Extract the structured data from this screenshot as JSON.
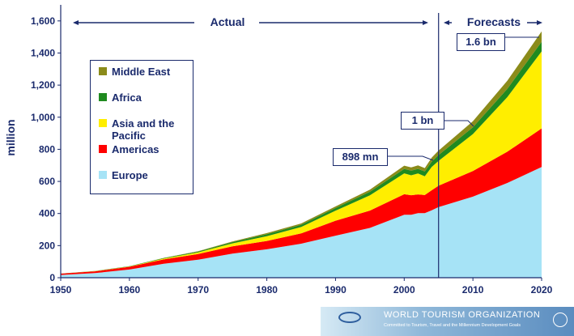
{
  "chart_data": {
    "type": "area",
    "stacked": true,
    "ylabel": "million",
    "ylim": [
      0,
      1700
    ],
    "xlim": [
      1950,
      2020
    ],
    "x_ticks": [
      "1950",
      "1960",
      "1970",
      "1980",
      "1990",
      "2000",
      "2010",
      "2020"
    ],
    "y_ticks": [
      "0",
      "200",
      "400",
      "600",
      "800",
      "1,000",
      "1,200",
      "1,400",
      "1,600"
    ],
    "x": [
      1950,
      1955,
      1960,
      1965,
      1970,
      1975,
      1980,
      1985,
      1990,
      1995,
      2000,
      2001,
      2002,
      2003,
      2004,
      2005,
      2010,
      2015,
      2020
    ],
    "series": [
      {
        "name": "Europe",
        "color": "#a6e3f6",
        "values": [
          17,
          29,
          51,
          87,
          112,
          150,
          177,
          212,
          262,
          310,
          392,
          392,
          402,
          402,
          420,
          440,
          505,
          590,
          690
        ]
      },
      {
        "name": "Americas",
        "color": "#ff0000",
        "values": [
          8,
          11,
          17,
          27,
          36,
          45,
          52,
          64,
          93,
          108,
          128,
          122,
          117,
          113,
          125,
          133,
          160,
          195,
          240
        ]
      },
      {
        "name": "Asia and the Pacific",
        "color": "#ffee00",
        "values": [
          0.2,
          1,
          2,
          5,
          10,
          19,
          30,
          40,
          62,
          95,
          130,
          124,
          130,
          117,
          145,
          155,
          230,
          340,
          480
        ]
      },
      {
        "name": "Africa",
        "color": "#1f8a1f",
        "values": [
          0.5,
          1,
          1.5,
          3,
          5,
          8,
          12,
          14,
          17,
          22,
          28,
          29,
          29,
          30,
          33,
          36,
          42,
          52,
          60
        ]
      },
      {
        "name": "Middle East",
        "color": "#8b8b1a",
        "values": [
          0.2,
          0.5,
          0.6,
          1.5,
          2,
          4,
          7,
          8,
          10,
          14,
          20,
          20,
          22,
          21,
          25,
          28,
          38,
          50,
          65
        ]
      }
    ],
    "forecast_start": 2005,
    "annotations": {
      "actual_label": "Actual",
      "forecasts_label": "Forecasts",
      "callout_1_6bn": "1.6 bn",
      "callout_1bn": "1 bn",
      "callout_898mn": "898 mn"
    },
    "legend_order": [
      "Middle East",
      "Africa",
      "Asia and the Pacific",
      "Americas",
      "Europe"
    ],
    "legend_placement": "left-inside"
  },
  "legend": {
    "middle_east": "Middle East",
    "africa": "Africa",
    "asia_pacific": "Asia and the Pacific",
    "americas": "Americas",
    "europe": "Europe"
  },
  "logo": {
    "title": "WORLD TOURISM ORGANIZATION",
    "subtitle": "Committed to Tourism, Travel and the Millennium Development Goals"
  },
  "colors": {
    "axis": "#1a2a6c",
    "europe": "#a6e3f6",
    "americas": "#ff0000",
    "asia_pacific": "#ffee00",
    "africa": "#1f8a1f",
    "middle_east": "#8b8b1a"
  }
}
